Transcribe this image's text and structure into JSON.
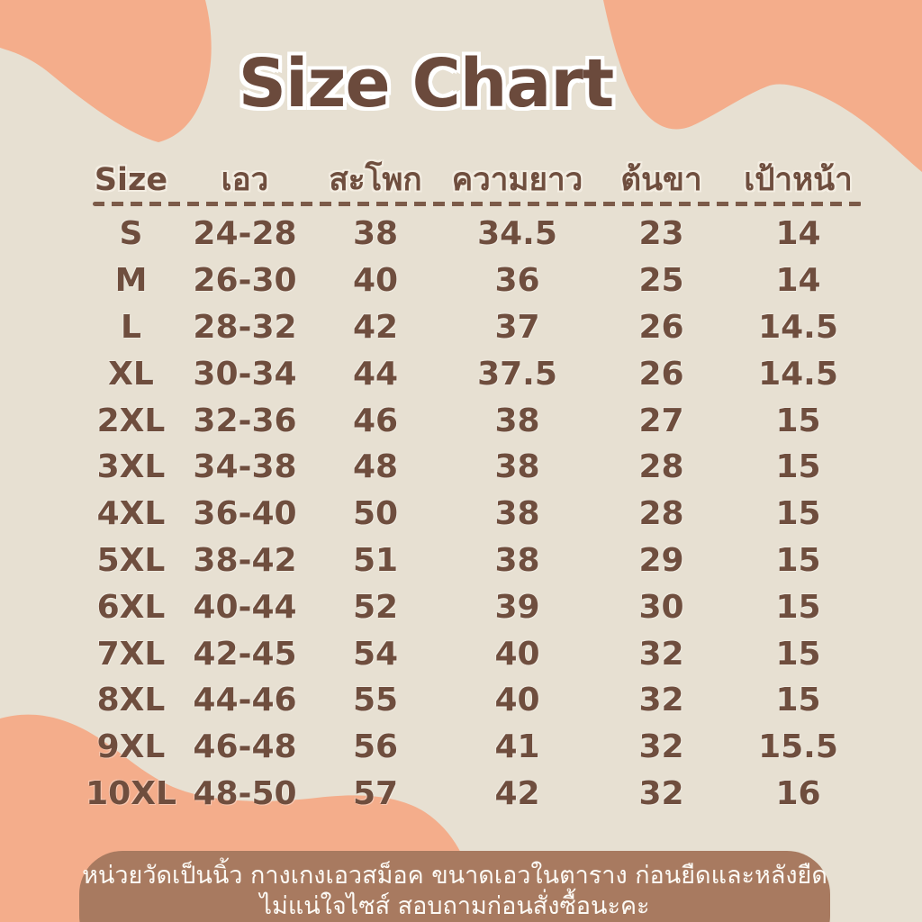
{
  "chart_data": {
    "type": "table",
    "title": "Size Chart",
    "columns": [
      "Size",
      "เอว",
      "สะโพก",
      "ความยาว",
      "ต้นขา",
      "เป้าหน้า"
    ],
    "rows": [
      [
        "S",
        "24-28",
        "38",
        "34.5",
        "23",
        "14"
      ],
      [
        "M",
        "26-30",
        "40",
        "36",
        "25",
        "14"
      ],
      [
        "L",
        "28-32",
        "42",
        "37",
        "26",
        "14.5"
      ],
      [
        "XL",
        "30-34",
        "44",
        "37.5",
        "26",
        "14.5"
      ],
      [
        "2XL",
        "32-36",
        "46",
        "38",
        "27",
        "15"
      ],
      [
        "3XL",
        "34-38",
        "48",
        "38",
        "28",
        "15"
      ],
      [
        "4XL",
        "36-40",
        "50",
        "38",
        "28",
        "15"
      ],
      [
        "5XL",
        "38-42",
        "51",
        "38",
        "29",
        "15"
      ],
      [
        "6XL",
        "40-44",
        "52",
        "39",
        "30",
        "15"
      ],
      [
        "7XL",
        "42-45",
        "54",
        "40",
        "32",
        "15"
      ],
      [
        "8XL",
        "44-46",
        "55",
        "40",
        "32",
        "15"
      ],
      [
        "9XL",
        "46-48",
        "56",
        "41",
        "32",
        "15.5"
      ],
      [
        "10XL",
        "48-50",
        "57",
        "42",
        "32",
        "16"
      ]
    ]
  },
  "footer": {
    "line1": "หน่วยวัดเป็นนิ้ว กางเกงเอวสม็อค ขนาดเอวในตาราง ก่อนยืดและหลังยืด",
    "line2": "ไม่แน่ใจไซส์ สอบถามก่อนสั่งซื้อนะคะ"
  },
  "colors": {
    "background": "#E7E0D2",
    "blob": "#F4AD8B",
    "text": "#6F4E3E",
    "title_text": "#6B4A3C",
    "divider": "#7C5B49",
    "footer_bg": "#A87A60",
    "footer_text": "#FCFAF5"
  }
}
